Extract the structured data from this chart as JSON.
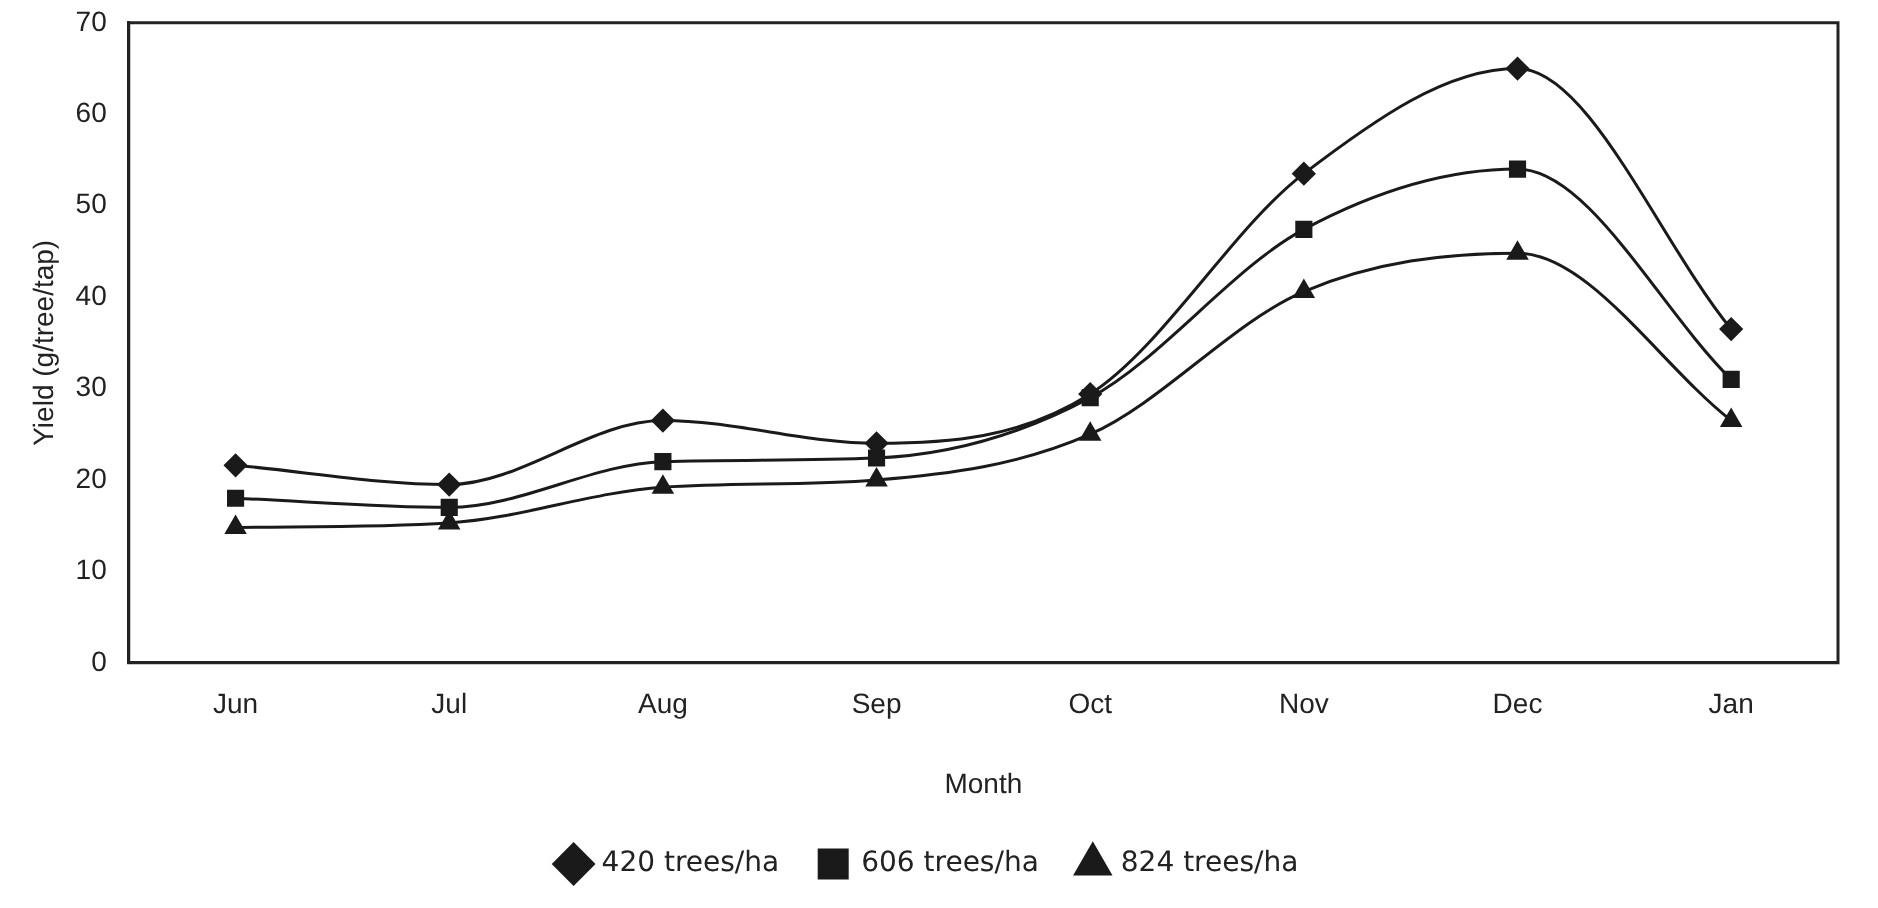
{
  "chart_data": {
    "type": "line",
    "xlabel": "Month",
    "ylabel": "Yield (g/tree/tap)",
    "categories": [
      "Jun",
      "Jul",
      "Aug",
      "Sep",
      "Oct",
      "Nov",
      "Dec",
      "Jan"
    ],
    "series": [
      {
        "name": "420 trees/ha",
        "color": "#1a1a1a",
        "marker": "diamond",
        "values": [
          21.6,
          19.5,
          26.5,
          24,
          29.4,
          53.5,
          65,
          36.5
        ]
      },
      {
        "name": "606 trees/ha",
        "color": "#1a1a1a",
        "marker": "square",
        "values": [
          18,
          17,
          22,
          22.4,
          29,
          47.4,
          54,
          31
        ]
      },
      {
        "name": "824 trees/ha",
        "color": "#1a1a1a",
        "marker": "triangle",
        "values": [
          14.8,
          15.3,
          19.2,
          20,
          25,
          40.6,
          44.8,
          26.5
        ]
      }
    ],
    "ylim": [
      0,
      70
    ],
    "yticks": [
      0,
      10,
      20,
      30,
      40,
      50,
      60,
      70
    ],
    "grid": false,
    "legend": "bottom",
    "line_style": "solid"
  }
}
